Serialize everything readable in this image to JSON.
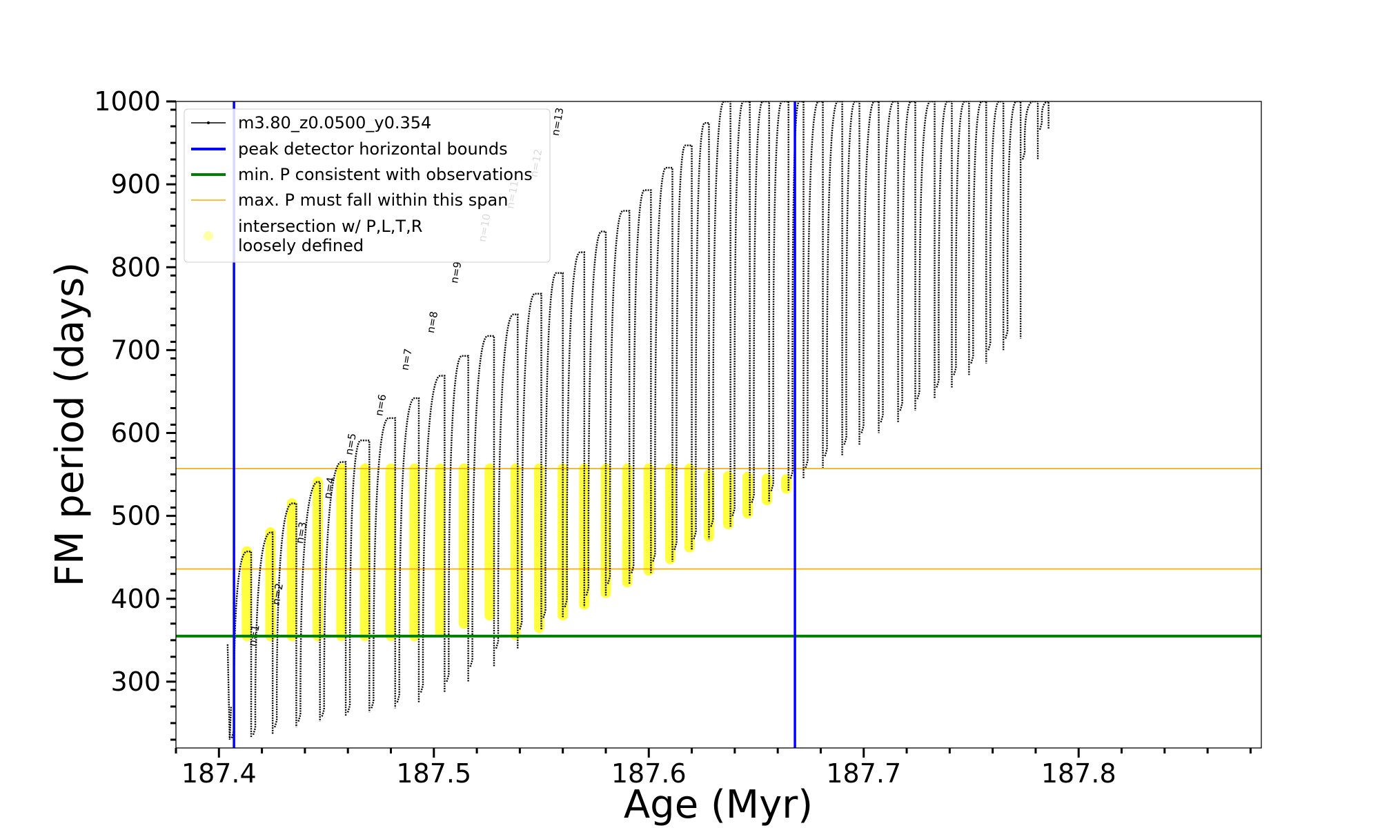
{
  "chart_data": {
    "type": "line",
    "title": "",
    "xlabel": "Age (Myr)",
    "ylabel": "FM period (days)",
    "xlim": [
      187.38,
      187.885
    ],
    "ylim": [
      220,
      1000
    ],
    "x_ticks": [
      187.4,
      187.5,
      187.6,
      187.7,
      187.8
    ],
    "x_tick_labels": [
      "187.4",
      "187.5",
      "187.6",
      "187.7",
      "187.8"
    ],
    "y_ticks": [
      300,
      400,
      500,
      600,
      700,
      800,
      900,
      1000
    ],
    "y_tick_labels": [
      "300",
      "400",
      "500",
      "600",
      "700",
      "800",
      "900",
      "1000"
    ],
    "grid": false,
    "legend_position": "top-left",
    "legend": [
      {
        "label": "m3.80_z0.0500_y0.354",
        "color": "#000000",
        "kind": "line-marker"
      },
      {
        "label": "peak detector horizontal bounds",
        "color": "#0000ff",
        "kind": "line"
      },
      {
        "label": "min. P consistent with observations",
        "color": "#008000",
        "kind": "line"
      },
      {
        "label": "max. P must fall within this span",
        "color": "#ffa500",
        "kind": "thin-line"
      },
      {
        "label": "intersection w/ P,L,T,R",
        "label2": "loosely defined",
        "color": "#ffff00",
        "kind": "marker"
      }
    ],
    "reference_lines": {
      "vertical_blue_x": [
        187.407,
        187.668
      ],
      "horizontal_green_y": 355,
      "horizontal_orange_y": [
        436,
        557
      ]
    },
    "series": [
      {
        "name": "m3.80_z0.0500_y0.354",
        "color": "#000000",
        "pulses": [
          {
            "x": 187.405,
            "min": 230,
            "max": 345,
            "peak_x": 187.405
          },
          {
            "x": 187.415,
            "min": 232,
            "max": 457,
            "peak_x": 187.413
          },
          {
            "x": 187.425,
            "min": 236,
            "max": 480,
            "peak_x": 187.424
          },
          {
            "x": 187.436,
            "min": 245,
            "max": 515,
            "peak_x": 187.434
          },
          {
            "x": 187.447,
            "min": 252,
            "max": 541,
            "peak_x": 187.446
          },
          {
            "x": 187.459,
            "min": 258,
            "max": 565,
            "peak_x": 187.457
          },
          {
            "x": 187.47,
            "min": 263,
            "max": 591,
            "peak_x": 187.466
          },
          {
            "x": 187.482,
            "min": 268,
            "max": 618,
            "peak_x": 187.479
          },
          {
            "x": 187.493,
            "min": 275,
            "max": 642,
            "peak_x": 187.491
          },
          {
            "x": 187.505,
            "min": 287,
            "max": 669,
            "peak_x": 187.503
          },
          {
            "x": 187.516,
            "min": 300,
            "max": 693,
            "peak_x": 187.513
          },
          {
            "x": 187.528,
            "min": 318,
            "max": 717,
            "peak_x": 187.525
          },
          {
            "x": 187.539,
            "min": 340,
            "max": 743,
            "peak_x": 187.537
          },
          {
            "x": 187.55,
            "min": 363,
            "max": 768,
            "peak_x": 187.547
          },
          {
            "x": 187.56,
            "min": 377,
            "max": 793,
            "peak_x": 187.557
          },
          {
            "x": 187.57,
            "min": 390,
            "max": 818,
            "peak_x": 187.568
          },
          {
            "x": 187.58,
            "min": 404,
            "max": 843,
            "peak_x": 187.578
          },
          {
            "x": 187.591,
            "min": 418,
            "max": 868,
            "peak_x": 187.588
          },
          {
            "x": 187.601,
            "min": 431,
            "max": 893,
            "peak_x": 187.598
          },
          {
            "x": 187.611,
            "min": 445,
            "max": 920,
            "peak_x": 187.608
          },
          {
            "x": 187.62,
            "min": 459,
            "max": 947,
            "peak_x": 187.617
          },
          {
            "x": 187.628,
            "min": 472,
            "max": 974,
            "peak_x": 187.626
          },
          {
            "x": 187.638,
            "min": 487,
            "max": 1000,
            "peak_x": 187.635
          },
          {
            "x": 187.647,
            "min": 500,
            "max": 1000,
            "peak_x": 187.644
          },
          {
            "x": 187.656,
            "min": 516,
            "max": 1000,
            "peak_x": 187.653
          },
          {
            "x": 187.665,
            "min": 530,
            "max": 1000,
            "peak_x": 187.662
          },
          {
            "x": 187.672,
            "min": 545,
            "max": 1000,
            "peak_x": 187.67
          },
          {
            "x": 187.681,
            "min": 558,
            "max": 1000,
            "peak_x": 187.679
          },
          {
            "x": 187.69,
            "min": 572,
            "max": 1000,
            "peak_x": 187.688
          },
          {
            "x": 187.698,
            "min": 586,
            "max": 1000,
            "peak_x": 187.696
          },
          {
            "x": 187.707,
            "min": 600,
            "max": 1000,
            "peak_x": 187.705
          },
          {
            "x": 187.716,
            "min": 613,
            "max": 1000,
            "peak_x": 187.714
          },
          {
            "x": 187.724,
            "min": 627,
            "max": 1000,
            "peak_x": 187.722
          },
          {
            "x": 187.733,
            "min": 641,
            "max": 1000,
            "peak_x": 187.731
          },
          {
            "x": 187.741,
            "min": 655,
            "max": 1000,
            "peak_x": 187.739
          },
          {
            "x": 187.749,
            "min": 670,
            "max": 1000,
            "peak_x": 187.747
          },
          {
            "x": 187.757,
            "min": 684,
            "max": 1000,
            "peak_x": 187.755
          },
          {
            "x": 187.765,
            "min": 700,
            "max": 1000,
            "peak_x": 187.763
          },
          {
            "x": 187.773,
            "min": 714,
            "max": 1000,
            "peak_x": 187.771
          },
          {
            "x": 187.781,
            "min": 930,
            "max": 1000,
            "peak_x": 187.779
          },
          {
            "x": 187.786,
            "min": 966,
            "max": 1000,
            "peak_x": 187.786
          }
        ]
      }
    ],
    "yellow_intersections": [
      {
        "x": 187.413,
        "top": 457,
        "bottom": 355
      },
      {
        "x": 187.424,
        "top": 480,
        "bottom": 355
      },
      {
        "x": 187.434,
        "top": 515,
        "bottom": 355
      },
      {
        "x": 187.446,
        "top": 541,
        "bottom": 355
      },
      {
        "x": 187.457,
        "top": 557,
        "bottom": 355
      },
      {
        "x": 187.468,
        "top": 557,
        "bottom": 355
      },
      {
        "x": 187.48,
        "top": 557,
        "bottom": 355
      },
      {
        "x": 187.491,
        "top": 557,
        "bottom": 355
      },
      {
        "x": 187.503,
        "top": 557,
        "bottom": 360
      },
      {
        "x": 187.514,
        "top": 557,
        "bottom": 370
      },
      {
        "x": 187.526,
        "top": 557,
        "bottom": 380
      },
      {
        "x": 187.538,
        "top": 557,
        "bottom": 356
      },
      {
        "x": 187.549,
        "top": 557,
        "bottom": 365
      },
      {
        "x": 187.56,
        "top": 557,
        "bottom": 380
      },
      {
        "x": 187.57,
        "top": 557,
        "bottom": 393
      },
      {
        "x": 187.58,
        "top": 557,
        "bottom": 407
      },
      {
        "x": 187.59,
        "top": 557,
        "bottom": 420
      },
      {
        "x": 187.6,
        "top": 557,
        "bottom": 434
      },
      {
        "x": 187.61,
        "top": 557,
        "bottom": 448
      },
      {
        "x": 187.619,
        "top": 557,
        "bottom": 462
      },
      {
        "x": 187.628,
        "top": 550,
        "bottom": 475
      },
      {
        "x": 187.637,
        "top": 548,
        "bottom": 490
      },
      {
        "x": 187.646,
        "top": 547,
        "bottom": 503
      },
      {
        "x": 187.655,
        "top": 545,
        "bottom": 519
      },
      {
        "x": 187.664,
        "top": 544,
        "bottom": 533
      }
    ],
    "annotations": [
      {
        "text": "n=1",
        "x": 187.417,
        "y": 342
      },
      {
        "text": "n=2",
        "x": 187.428,
        "y": 392
      },
      {
        "text": "n=3",
        "x": 187.439,
        "y": 466
      },
      {
        "text": "n=4",
        "x": 187.452,
        "y": 520
      },
      {
        "text": "n=5",
        "x": 187.462,
        "y": 573
      },
      {
        "text": "n=6",
        "x": 187.476,
        "y": 620
      },
      {
        "text": "n=7",
        "x": 187.488,
        "y": 675
      },
      {
        "text": "n=8",
        "x": 187.5,
        "y": 720
      },
      {
        "text": "n=9",
        "x": 187.511,
        "y": 780
      },
      {
        "text": "n=10",
        "x": 187.524,
        "y": 830
      },
      {
        "text": "n=11",
        "x": 187.537,
        "y": 870
      },
      {
        "text": "n=12",
        "x": 187.548,
        "y": 908
      },
      {
        "text": "n=13",
        "x": 187.558,
        "y": 958
      }
    ]
  }
}
